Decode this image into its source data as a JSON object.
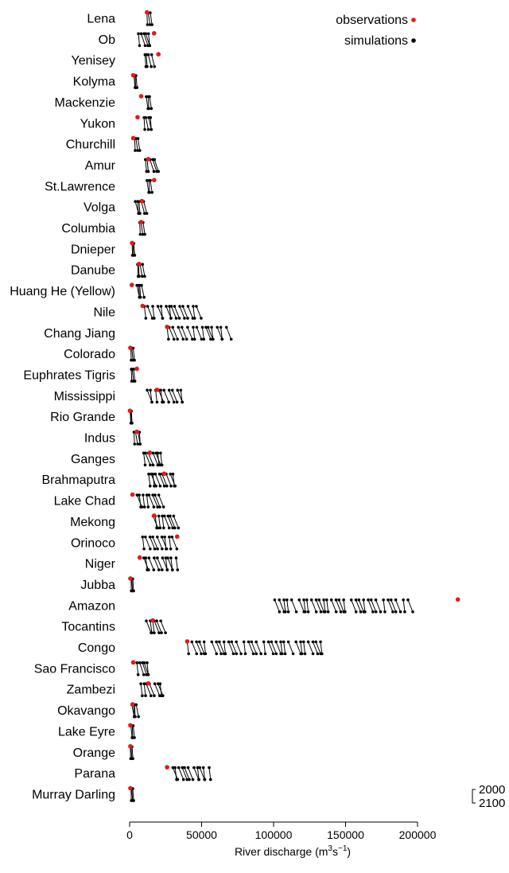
{
  "chart_data": {
    "type": "scatter",
    "title": "",
    "xlabel": "River discharge (m3s−1)",
    "xlabel_parts": {
      "main": "River discharge (m",
      "sup1": "3",
      "mid": "s",
      "sup2": "−1",
      "end": ")"
    },
    "xlim": [
      0,
      200000
    ],
    "xticks": [
      0,
      50000,
      100000,
      150000,
      200000
    ],
    "xtick_labels": [
      "0",
      "50000",
      "100000",
      "150000",
      "200000"
    ],
    "legend": {
      "position": "top-right",
      "entries": [
        {
          "label": "observations",
          "color": "#e41a1c"
        },
        {
          "label": "simulations",
          "color": "#000000"
        }
      ]
    },
    "year_key": {
      "top": "2000",
      "bottom": "2100"
    },
    "rivers": [
      {
        "name": "Lena",
        "obs": 12000,
        "sim": [
          [
            12000,
            17000
          ]
        ]
      },
      {
        "name": "Ob",
        "obs": 17000,
        "sim": [
          [
            5000,
            16000
          ]
        ]
      },
      {
        "name": "Yenisey",
        "obs": 20000,
        "sim": [
          [
            10000,
            18000
          ]
        ]
      },
      {
        "name": "Kolyma",
        "obs": 2500,
        "sim": [
          [
            3000,
            6000
          ]
        ]
      },
      {
        "name": "Mackenzie",
        "obs": 8000,
        "sim": [
          [
            11000,
            16000
          ]
        ]
      },
      {
        "name": "Yukon",
        "obs": 5500,
        "sim": [
          [
            10000,
            17000
          ]
        ]
      },
      {
        "name": "Churchill",
        "obs": 2500,
        "sim": [
          [
            3000,
            8000
          ]
        ]
      },
      {
        "name": "Amur",
        "obs": 13000,
        "sim": [
          [
            10000,
            21000
          ]
        ]
      },
      {
        "name": "St.Lawrence",
        "obs": 17000,
        "sim": [
          [
            12000,
            17000
          ]
        ]
      },
      {
        "name": "Volga",
        "obs": 8500,
        "sim": [
          [
            3000,
            12000
          ]
        ]
      },
      {
        "name": "Columbia",
        "obs": 8000,
        "sim": [
          [
            7000,
            12000
          ]
        ]
      },
      {
        "name": "Dnieper",
        "obs": 1700,
        "sim": [
          [
            1500,
            4000
          ]
        ]
      },
      {
        "name": "Danube",
        "obs": 6500,
        "sim": [
          [
            5000,
            11000
          ]
        ]
      },
      {
        "name": "Huang He (Yellow)",
        "obs": 1500,
        "sim": [
          [
            5000,
            12000
          ]
        ]
      },
      {
        "name": "Nile",
        "obs": 9000,
        "sim": [
          [
            7000,
            50000
          ]
        ]
      },
      {
        "name": "Chang Jiang",
        "obs": 26000,
        "sim": [
          [
            26000,
            73000
          ]
        ]
      },
      {
        "name": "Colorado",
        "obs": 500,
        "sim": [
          [
            500,
            4000
          ]
        ]
      },
      {
        "name": "Euphrates Tigris",
        "obs": 5000,
        "sim": [
          [
            500,
            4000
          ]
        ]
      },
      {
        "name": "Mississippi",
        "obs": 19000,
        "sim": [
          [
            12000,
            40000
          ]
        ]
      },
      {
        "name": "Rio Grande",
        "obs": 200,
        "sim": [
          [
            200,
            2000
          ]
        ]
      },
      {
        "name": "Indus",
        "obs": 5000,
        "sim": [
          [
            3000,
            9000
          ]
        ]
      },
      {
        "name": "Ganges",
        "obs": 14000,
        "sim": [
          [
            8000,
            25000
          ]
        ]
      },
      {
        "name": "Brahmaputra",
        "obs": 24000,
        "sim": [
          [
            11000,
            34000
          ]
        ]
      },
      {
        "name": "Lake Chad",
        "obs": 2000,
        "sim": [
          [
            5000,
            26000
          ]
        ]
      },
      {
        "name": "Mekong",
        "obs": 17000,
        "sim": [
          [
            14000,
            34000
          ]
        ]
      },
      {
        "name": "Orinoco",
        "obs": 33000,
        "sim": [
          [
            9000,
            34000
          ]
        ]
      },
      {
        "name": "Niger",
        "obs": 7000,
        "sim": [
          [
            8000,
            36000
          ]
        ]
      },
      {
        "name": "Jubba",
        "obs": 500,
        "sim": [
          [
            500,
            3000
          ]
        ]
      },
      {
        "name": "Amazon",
        "obs": 228000,
        "sim": [
          [
            100000,
            198000
          ]
        ]
      },
      {
        "name": "Tocantins",
        "obs": 16000,
        "sim": [
          [
            10000,
            25000
          ]
        ]
      },
      {
        "name": "Congo",
        "obs": 40000,
        "sim": [
          [
            40000,
            138000
          ]
        ]
      },
      {
        "name": "Sao Francisco",
        "obs": 2500,
        "sim": [
          [
            4000,
            15000
          ]
        ]
      },
      {
        "name": "Zambezi",
        "obs": 13000,
        "sim": [
          [
            6000,
            25000
          ]
        ]
      },
      {
        "name": "Okavango",
        "obs": 2000,
        "sim": [
          [
            1500,
            8000
          ]
        ]
      },
      {
        "name": "Lake Eyre",
        "obs": 500,
        "sim": [
          [
            500,
            4000
          ]
        ]
      },
      {
        "name": "Orange",
        "obs": 500,
        "sim": [
          [
            500,
            3000
          ]
        ]
      },
      {
        "name": "Parana",
        "obs": 26000,
        "sim": [
          [
            28000,
            59000
          ]
        ]
      },
      {
        "name": "Murray Darling",
        "obs": 500,
        "sim": [
          [
            500,
            3000
          ]
        ]
      }
    ]
  }
}
